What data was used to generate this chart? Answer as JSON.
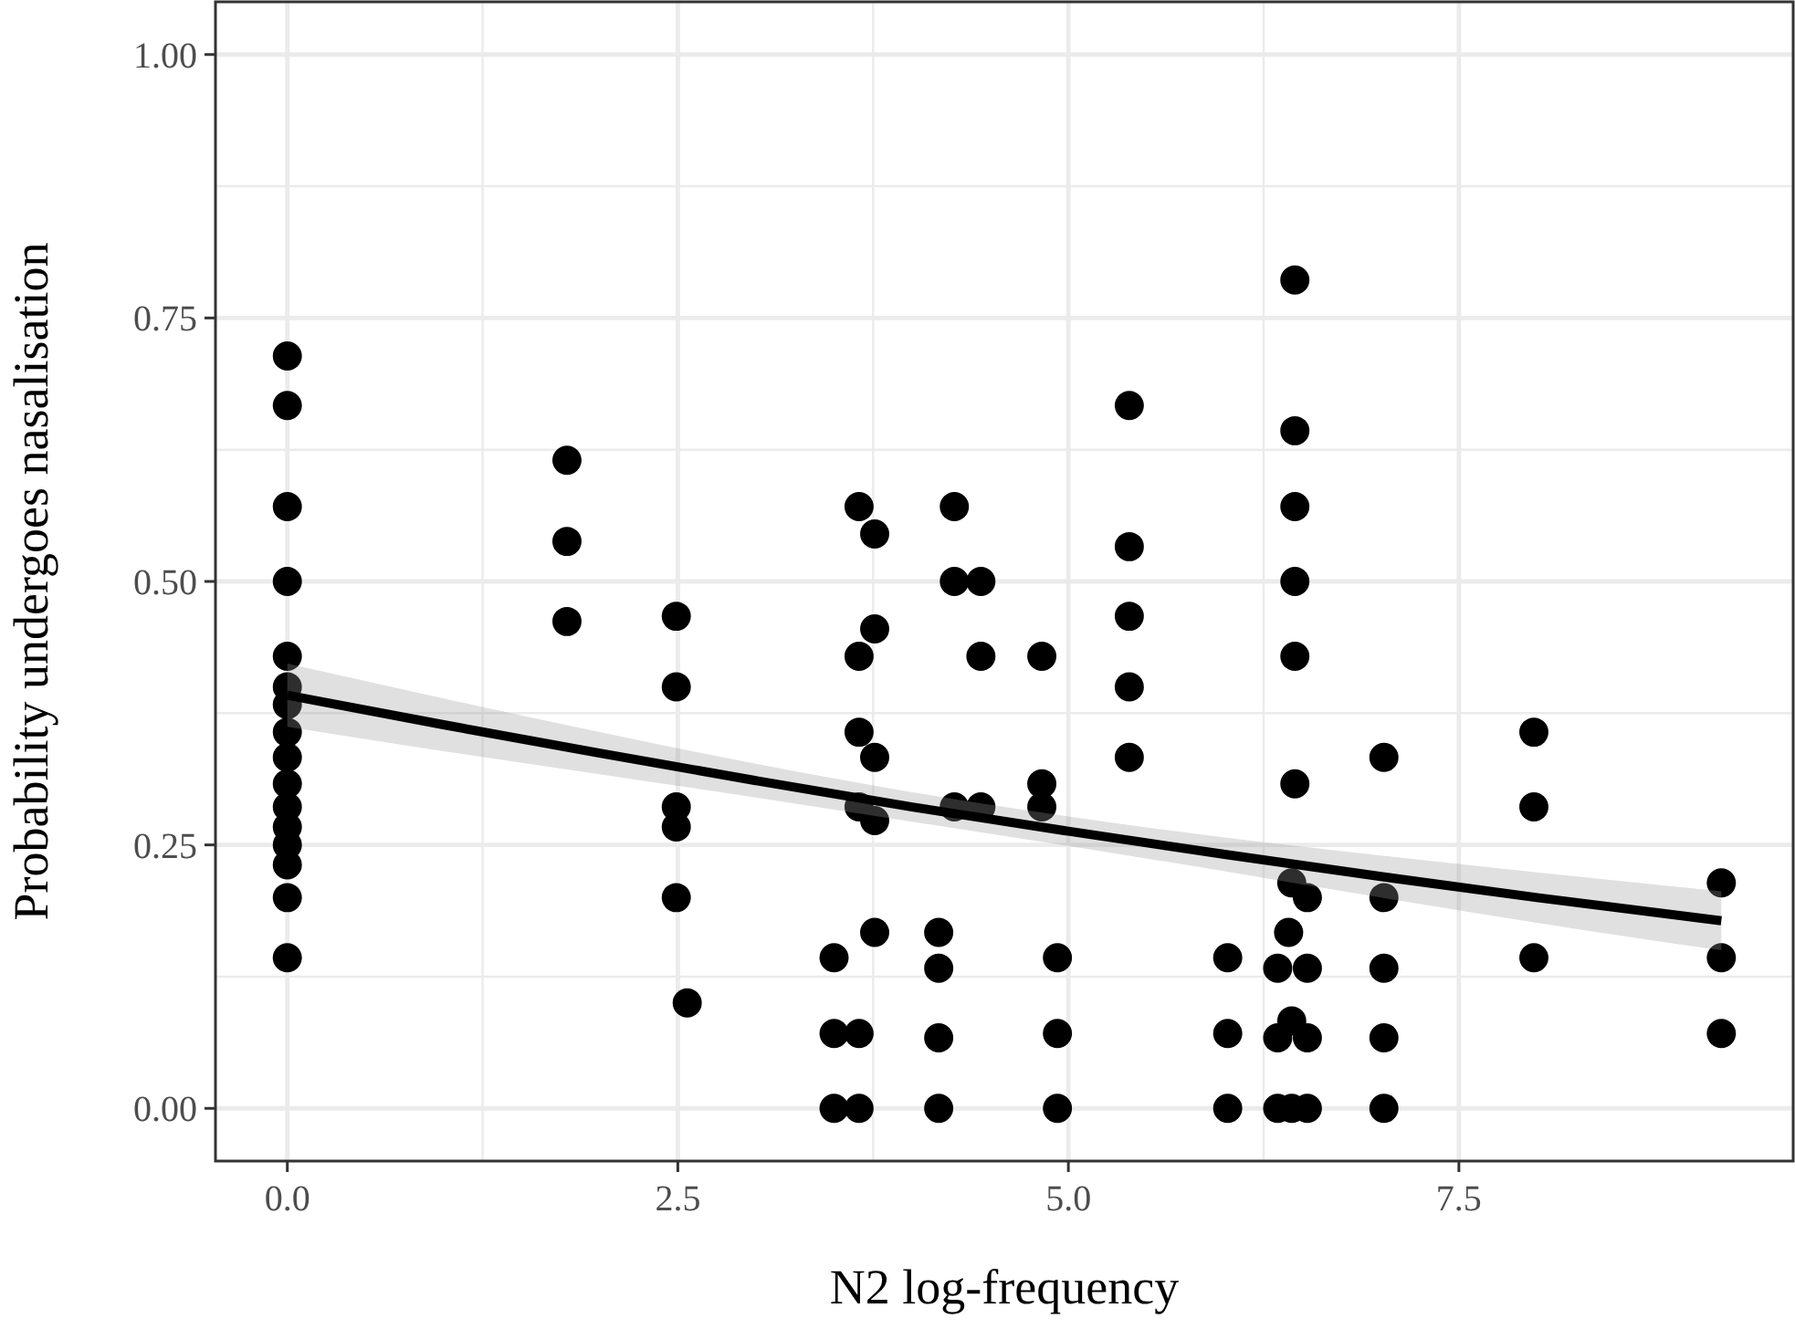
{
  "chart_data": {
    "type": "scatter",
    "xlabel": "N2 log-frequency",
    "ylabel": "Probability undergoes nasalisation",
    "xlim": [
      -0.46,
      9.64
    ],
    "ylim": [
      -0.05,
      1.05
    ],
    "xticks": [
      {
        "value": 0,
        "label": "0.0"
      },
      2.5,
      {
        "value": 5,
        "label": "5.0"
      },
      7.5
    ],
    "yticks": [
      {
        "value": 0,
        "label": "0.00"
      },
      0.25,
      {
        "value": 0.5,
        "label": "0.50"
      },
      0.75,
      {
        "value": 1,
        "label": "1.00"
      }
    ],
    "grid": true,
    "series": [
      {
        "marker": "circle",
        "color": "#000000",
        "x": [
          0,
          0,
          0,
          0,
          0,
          0,
          0,
          0,
          0,
          0,
          0,
          0,
          0,
          0,
          0,
          0,
          1.79,
          1.79,
          1.79,
          2.49,
          2.49,
          2.49,
          2.49,
          2.49,
          2.56,
          3.5,
          3.5,
          3.5,
          3.66,
          3.66,
          3.66,
          3.66,
          3.66,
          3.66,
          3.76,
          3.76,
          3.76,
          3.76,
          3.76,
          4.17,
          4.17,
          4.17,
          4.17,
          4.27,
          4.27,
          4.27,
          4.44,
          4.44,
          4.44,
          4.83,
          4.83,
          4.83,
          4.93,
          4.93,
          4.93,
          5.39,
          5.39,
          5.39,
          5.39,
          5.39,
          6.02,
          6.02,
          6.02,
          6.45,
          6.45,
          6.45,
          6.45,
          6.45,
          6.45,
          6.43,
          6.53,
          6.41,
          6.34,
          6.53,
          6.43,
          6.34,
          6.53,
          6.34,
          6.43,
          6.53,
          7.02,
          7.02,
          7.02,
          7.02,
          7.02,
          7.98,
          7.98,
          7.98,
          9.18,
          9.18,
          9.18
        ],
        "values": [
          0.714,
          0.667,
          0.571,
          0.5,
          0.429,
          0.4,
          0.383,
          0.357,
          0.333,
          0.308,
          0.286,
          0.267,
          0.25,
          0.231,
          0.2,
          0.143,
          0.615,
          0.538,
          0.462,
          0.467,
          0.4,
          0.286,
          0.267,
          0.2,
          0.1,
          0.143,
          0.071,
          0,
          0.571,
          0.429,
          0.357,
          0.286,
          0.071,
          0,
          0.545,
          0.455,
          0.333,
          0.273,
          0.167,
          0.167,
          0.133,
          0.067,
          0,
          0.571,
          0.5,
          0.286,
          0.5,
          0.429,
          0.286,
          0.429,
          0.308,
          0.286,
          0.143,
          0.071,
          0,
          0.667,
          0.533,
          0.467,
          0.4,
          0.333,
          0.143,
          0.071,
          0,
          0.786,
          0.643,
          0.571,
          0.5,
          0.429,
          0.308,
          0.214,
          0.2,
          0.167,
          0.133,
          0.133,
          0.083,
          0.067,
          0.067,
          0,
          0,
          0,
          0.333,
          0.2,
          0.133,
          0.067,
          0,
          0.357,
          0.286,
          0.143,
          0.214,
          0.143,
          0.071
        ]
      },
      {
        "type": "line",
        "color": "#000000",
        "x": [
          0,
          1,
          2,
          3,
          4,
          5,
          6,
          7,
          8,
          9.18
        ],
        "values": [
          0.392,
          0.364,
          0.337,
          0.311,
          0.286,
          0.263,
          0.241,
          0.22,
          0.2,
          0.178
        ],
        "lower": [
          0.362,
          0.339,
          0.317,
          0.295,
          0.272,
          0.249,
          0.225,
          0.2,
          0.176,
          0.15
        ],
        "upper": [
          0.422,
          0.389,
          0.357,
          0.327,
          0.3,
          0.277,
          0.257,
          0.24,
          0.224,
          0.206
        ]
      }
    ]
  }
}
